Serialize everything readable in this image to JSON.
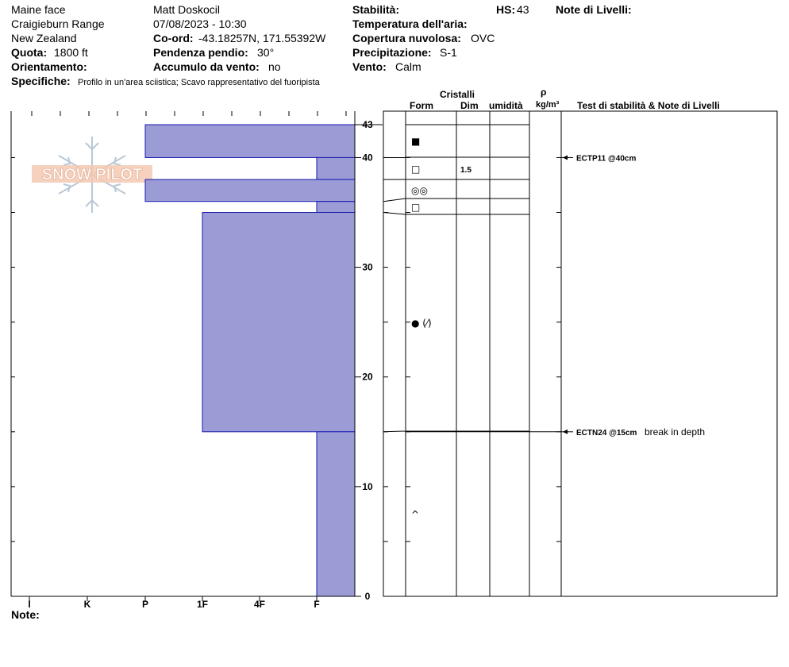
{
  "header": {
    "location": "Maine face",
    "range": "Craigieburn Range",
    "country": "New Zealand",
    "elevation_label": "Quota:",
    "elevation_value": "1800 ft",
    "aspect_label": "Orientamento:",
    "aspect_value": "",
    "specifics_label": "Specifiche:",
    "specifics_value": "Profilo in un'area sciistica; Scavo rappresentativo del fuoripista",
    "observer": "Matt Doskocil",
    "datetime": "07/08/2023 - 10:30",
    "coord_label": "Co-ord:",
    "coord_value": "-43.18257N, 171.55392W",
    "slope_label": "Pendenza pendio:",
    "slope_value": "30°",
    "wind_loading_label": "Accumulo da vento:",
    "wind_loading_value": "no",
    "stability_label": "Stabilità:",
    "stability_value": "",
    "hs_label": "HS:",
    "hs_value": "43",
    "layer_notes_label": "Note di Livelli:",
    "air_temp_label": "Temperatura dell'aria:",
    "air_temp_value": "",
    "sky_label": "Copertura nuvolosa:",
    "sky_value": "OVC",
    "precip_label": "Precipitazione:",
    "precip_value": "S-1",
    "wind_label": "Vento:",
    "wind_value": "Calm"
  },
  "watermark": {
    "text": "SNOWPILOT"
  },
  "notes_label": "Note:",
  "columns": {
    "crystals": "Cristalli",
    "form": "Form",
    "size": "Dim",
    "moisture": "umidità",
    "rho": "ρ",
    "density_unit": "kg/m³",
    "tests_notes": "Test di stabilità & Note di Livelli"
  },
  "colors": {
    "layer_fill": "#9b9bd6",
    "layer_stroke": "#1a1ab0",
    "axis": "#000000"
  },
  "chart_data": {
    "type": "bar",
    "title": "",
    "xlabel": "",
    "ylabel": "",
    "hardness_scale": [
      "I",
      "K",
      "P",
      "1F",
      "4F",
      "F"
    ],
    "hardness_tick_labels": [
      "I",
      "K",
      "P",
      "1F",
      "4F",
      "F"
    ],
    "y_ticks": [
      0,
      10,
      20,
      30,
      40,
      43
    ],
    "ylim": [
      0,
      43
    ],
    "layers": [
      {
        "top": 43,
        "bottom": 40,
        "hardness": "P",
        "form_icon": "■",
        "size": ""
      },
      {
        "top": 40,
        "bottom": 38,
        "hardness": "F",
        "form_icon": "□",
        "size": "1.5"
      },
      {
        "top": 38,
        "bottom": 36,
        "hardness": "P",
        "form_icon": "◎◎",
        "size": ""
      },
      {
        "top": 36,
        "bottom": 35,
        "hardness": "F",
        "form_icon": "□",
        "size": ""
      },
      {
        "top": 35,
        "bottom": 15,
        "hardness": "1F",
        "form_icon": "● (⁄)",
        "size": ""
      },
      {
        "top": 15,
        "bottom": 0,
        "hardness": "F",
        "form_icon": "^",
        "size": ""
      }
    ],
    "tests": [
      {
        "depth": 40,
        "label": "ECTP11 @40cm",
        "note": ""
      },
      {
        "depth": 15,
        "label": "ECTN24 @15cm",
        "note": "break in depth"
      }
    ]
  }
}
